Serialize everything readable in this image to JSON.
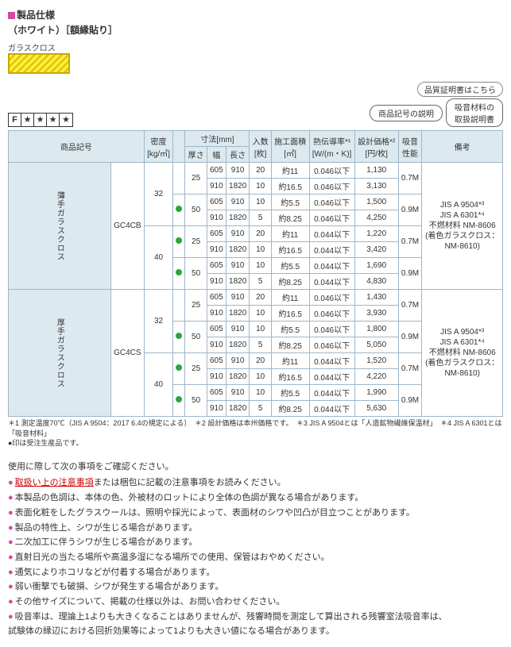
{
  "header": {
    "sectionTitle": "製品仕様",
    "subtitle": "（ホワイト）［額縁貼り］",
    "glassclothLabel": "ガラスクロス",
    "qualityDoc": "品質証明書はこちら",
    "chipCode": "商品記号の説明",
    "chipManual1": "吸音材料の",
    "chipManual2": "取扱説明書",
    "starF": "F",
    "star": "★"
  },
  "table": {
    "h_code": "商品記号",
    "h_density": "密度",
    "h_density2": "[kg/㎥]",
    "h_dim": "寸法[mm]",
    "h_thick": "厚さ",
    "h_width": "幅",
    "h_length": "長さ",
    "h_count": "入数",
    "h_count2": "[枚]",
    "h_area": "施工面積",
    "h_area2": "[㎡]",
    "h_cond": "熱伝導率*¹",
    "h_cond2": "[W/(m・K)]",
    "h_price": "設計価格*²",
    "h_price2": "[円/枚]",
    "h_abs": "吸音",
    "h_abs2": "性能",
    "h_remark": "備考",
    "cat1": "薄手ガラスクロス",
    "cat2": "厚手ガラスクロス",
    "code1": "GC4CB",
    "code2": "GC4CS",
    "remarks1a": "JIS A 9504*³",
    "remarks1b": "JIS A 6301*⁴",
    "remarks1c": "不燃材料 NM-8606",
    "remarks1d": "(着色ガラスクロス：",
    "remarks1e": "NM-8610)",
    "d32": "32",
    "d40": "40",
    "t25": "25",
    "t50": "50",
    "w605": "605",
    "w910": "910",
    "l910": "910",
    "l1820": "1820",
    "n20": "20",
    "n10": "10",
    "n5": "5",
    "a11": "約11",
    "a165": "約16.5",
    "a55": "約5.5",
    "a825": "約8.25",
    "c046": "0.046以下",
    "c044": "0.044以下",
    "p1130": "1,130",
    "p3130": "3,130",
    "p1500": "1,500",
    "p4250": "4,250",
    "p1220": "1,220",
    "p3420": "3,420",
    "p1690": "1,690",
    "p4830": "4,830",
    "p1430": "1,430",
    "p3930": "3,930",
    "p1800": "1,800",
    "p5050": "5,050",
    "p1520": "1,520",
    "p4220": "4,220",
    "p1990": "1,990",
    "p5630": "5,630",
    "abs07": "0.7M",
    "abs09": "0.9M"
  },
  "footnotes": {
    "l1": "＊1 測定温度70℃（JIS A 9504：2017 6.4の規定による）　＊2 設計価格は本州価格です。　＊3 JIS A 9504とは「人造鉱物繊維保温材」　＊4 JIS A 6301とは「吸音材料」",
    "l2": "●印は受注生産品です。"
  },
  "bullets": {
    "lead": "使用に際して次の事項をご確認ください。",
    "b1a": "取扱い上の注意事項",
    "b1b": "または梱包に記載の注意事項をお読みください。",
    "b2": "本製品の色調は、本体の色、外被材のロットにより全体の色調が異なる場合があります。",
    "b3": "表面化粧をしたグラスウールは、照明や採光によって、表面材のシワや凹凸が目立つことがあります。",
    "b4": "製品の特性上、シワが生じる場合があります。",
    "b5": "二次加工に伴うシワが生じる場合があります。",
    "b6": "直射日光の当たる場所や高温多湿になる場所での使用、保管はおやめください。",
    "b7": "通気によりホコリなどが付着する場合があります。",
    "b8": "弱い衝撃でも破損、シワが発生する場合があります。",
    "b9": "その他サイズについて、掲載の仕様以外は、お問い合わせください。",
    "b10": "吸音率は、理論上1よりも大きくなることはありませんが、残響時間を測定して算出される残響室法吸音率は、",
    "b11": "試験体の縁辺における回折効果等によって1よりも大きい値になる場合があります。"
  }
}
